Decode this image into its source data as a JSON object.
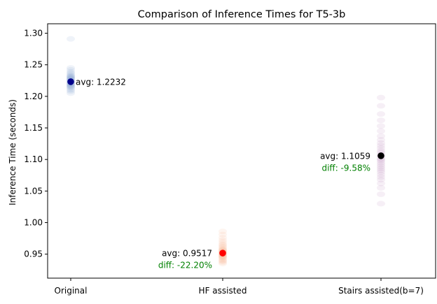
{
  "chart_data": {
    "type": "scatter",
    "title": "Comparison of Inference Times for T5-3b",
    "xlabel": "",
    "ylabel": "Inference Time (seconds)",
    "categories": [
      "Original",
      "HF assisted",
      "Stairs assisted(b=7)"
    ],
    "ylim": [
      0.912,
      1.315
    ],
    "yticks": [
      0.95,
      1.0,
      1.05,
      1.1,
      1.15,
      1.2,
      1.25,
      1.3
    ],
    "ytick_labels": [
      "0.95",
      "1.00",
      "1.05",
      "1.10",
      "1.15",
      "1.20",
      "1.25",
      "1.30"
    ],
    "grid": false,
    "series": [
      {
        "category": "Original",
        "samples": [
          1.205,
          1.208,
          1.21,
          1.212,
          1.214,
          1.215,
          1.216,
          1.217,
          1.218,
          1.219,
          1.22,
          1.221,
          1.222,
          1.223,
          1.224,
          1.225,
          1.226,
          1.227,
          1.228,
          1.229,
          1.23,
          1.231,
          1.232,
          1.233,
          1.235,
          1.237,
          1.239,
          1.242,
          1.245,
          1.291
        ],
        "mean": 1.2232,
        "avg_label": "avg: 1.2232",
        "diff_label": "",
        "point_color": "#00008b",
        "cloud_color": "#4a7fbf"
      },
      {
        "category": "HF assisted",
        "samples": [
          0.935,
          0.937,
          0.939,
          0.94,
          0.942,
          0.944,
          0.945,
          0.946,
          0.947,
          0.948,
          0.949,
          0.95,
          0.951,
          0.952,
          0.953,
          0.954,
          0.955,
          0.956,
          0.957,
          0.958,
          0.96,
          0.962,
          0.964,
          0.966,
          0.969,
          0.972,
          0.976,
          0.981,
          0.986
        ],
        "mean": 0.9517,
        "avg_label": "avg: 0.9517",
        "diff_label": "diff: -22.20%",
        "point_color": "#ff0000",
        "cloud_color": "#f4935e"
      },
      {
        "category": "Stairs assisted(b=7)",
        "samples": [
          1.03,
          1.045,
          1.055,
          1.062,
          1.068,
          1.072,
          1.076,
          1.08,
          1.083,
          1.086,
          1.089,
          1.092,
          1.095,
          1.098,
          1.1,
          1.102,
          1.105,
          1.108,
          1.111,
          1.114,
          1.118,
          1.122,
          1.126,
          1.131,
          1.137,
          1.145,
          1.153,
          1.162,
          1.172,
          1.185,
          1.198
        ],
        "mean": 1.1059,
        "avg_label": "avg: 1.1059",
        "diff_label": "diff: -9.58%",
        "point_color": "#000000",
        "cloud_color": "#9b4f9f"
      }
    ],
    "diff_color": "#008000"
  }
}
